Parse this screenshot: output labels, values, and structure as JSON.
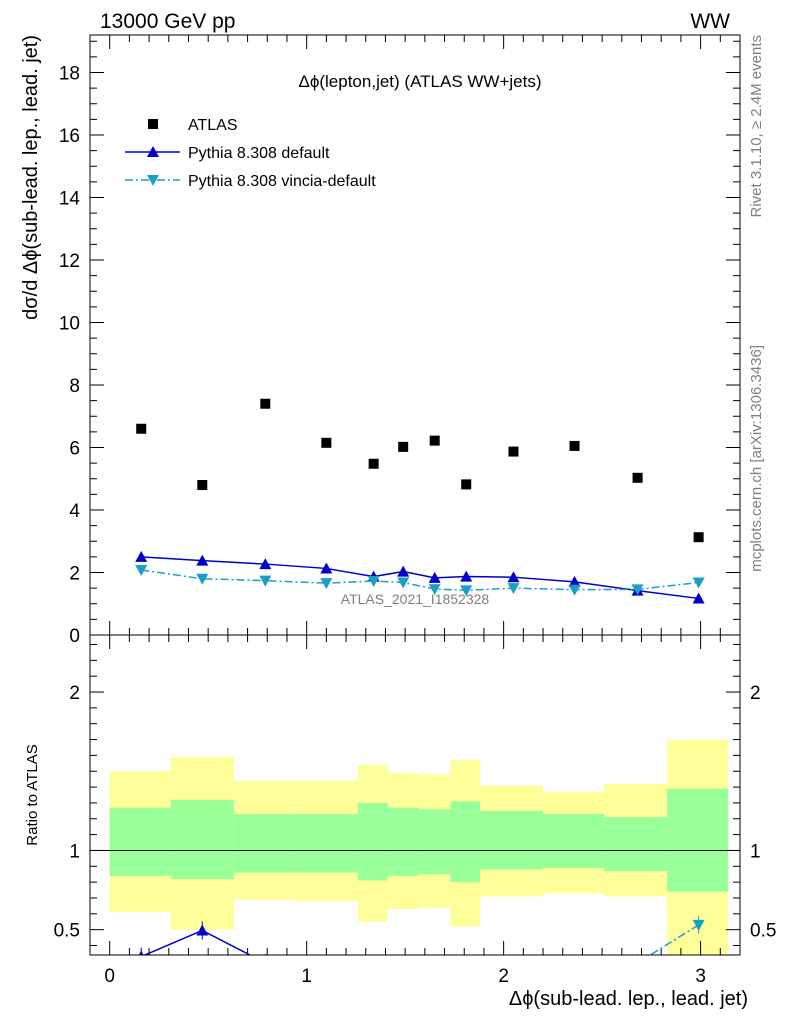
{
  "header": {
    "left": "13000 GeV pp",
    "right": "WW"
  },
  "side": {
    "top": "Rivet 3.1.10, ≥ 2.4M events",
    "bottom": "mcplots.cern.ch [arXiv:1306.3436]"
  },
  "chart_data": [
    {
      "type": "scatter",
      "title": "Δϕ(lepton,jet) (ATLAS WW+jets)",
      "ylabel": "dσ/d Δϕ(sub-lead. lep., lead. jet)",
      "xlabel": "Δϕ(sub-lead. lep., lead. jet)",
      "watermark": "ATLAS_2021_I1852328",
      "xlim": [
        -0.1,
        3.2
      ],
      "ylim": [
        0,
        19.2
      ],
      "x_ticks": [
        0,
        1,
        2,
        3
      ],
      "y_ticks": [
        0,
        2,
        4,
        6,
        8,
        10,
        12,
        14,
        16,
        18
      ],
      "legend_position": "top-left",
      "x": [
        0.16,
        0.47,
        0.79,
        1.1,
        1.34,
        1.49,
        1.65,
        1.81,
        2.05,
        2.36,
        2.68,
        2.99
      ],
      "bin_edges": [
        0.0,
        0.31,
        0.63,
        0.94,
        1.26,
        1.41,
        1.57,
        1.73,
        1.88,
        2.2,
        2.51,
        2.83,
        3.14
      ],
      "series": [
        {
          "name": "ATLAS",
          "marker": "square",
          "color": "#000000",
          "values": [
            6.6,
            4.8,
            7.4,
            6.15,
            5.48,
            6.02,
            6.22,
            4.82,
            5.87,
            6.05,
            5.03,
            3.13
          ]
        },
        {
          "name": "Pythia 8.308 default",
          "marker": "triangle-up",
          "line": "solid",
          "color": "#0000cc",
          "values": [
            2.5,
            2.38,
            2.27,
            2.13,
            1.87,
            2.03,
            1.83,
            1.87,
            1.85,
            1.7,
            1.42,
            1.17
          ]
        },
        {
          "name": "Pythia 8.308 vincia-default",
          "marker": "triangle-down",
          "line": "dashdot",
          "color": "#1ba0c5",
          "values": [
            2.08,
            1.8,
            1.74,
            1.66,
            1.73,
            1.68,
            1.47,
            1.43,
            1.5,
            1.45,
            1.46,
            1.68
          ]
        }
      ]
    },
    {
      "type": "line",
      "ylabel": "Ratio to ATLAS",
      "ylim": [
        0.34,
        2.36
      ],
      "y_ticks": [
        0.5,
        1,
        2
      ],
      "y_tick_labels": [
        "0.5",
        "1",
        "2"
      ],
      "reference": 1,
      "band_colors": {
        "inner": "#99ff99",
        "outer": "#ffff99"
      },
      "bands": {
        "bin_edges": [
          0.0,
          0.31,
          0.63,
          0.94,
          1.26,
          1.41,
          1.57,
          1.73,
          1.88,
          2.2,
          2.51,
          2.83,
          3.14
        ],
        "inner_lo": [
          0.84,
          0.82,
          0.86,
          0.86,
          0.81,
          0.84,
          0.85,
          0.8,
          0.88,
          0.89,
          0.87,
          0.74
        ],
        "inner_hi": [
          1.27,
          1.32,
          1.23,
          1.23,
          1.3,
          1.27,
          1.26,
          1.31,
          1.25,
          1.23,
          1.21,
          1.39
        ],
        "outer_lo": [
          0.61,
          0.5,
          0.69,
          0.68,
          0.55,
          0.63,
          0.64,
          0.52,
          0.71,
          0.73,
          0.71,
          0.34
        ],
        "outer_hi": [
          1.5,
          1.59,
          1.44,
          1.44,
          1.54,
          1.49,
          1.48,
          1.57,
          1.41,
          1.37,
          1.42,
          1.7
        ]
      },
      "series": [
        {
          "name": "Pythia 8.308 default",
          "marker": "triangle-up",
          "color": "#0000cc",
          "x": [
            0.16,
            0.47,
            0.79
          ],
          "values": [
            0.33,
            0.495,
            0.29
          ]
        },
        {
          "name": "Pythia 8.308 vincia-default",
          "marker": "triangle-down",
          "color": "#1ba0c5",
          "x": [
            2.68,
            2.99
          ],
          "values": [
            0.29,
            0.53
          ]
        }
      ]
    }
  ]
}
